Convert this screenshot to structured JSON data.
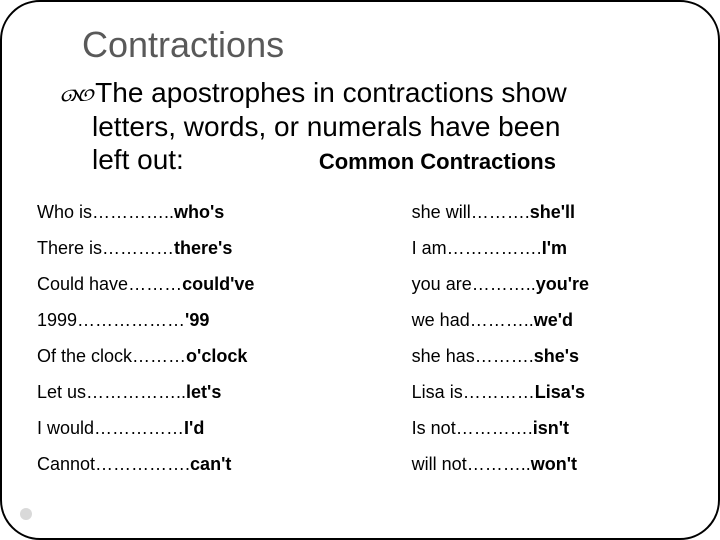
{
  "title": "Contractions",
  "body": {
    "line1": "The apostrophes in contractions show",
    "line2": "letters, words, or numerals have been",
    "leftout": "left out:",
    "subtitle": "Common Contractions"
  },
  "rows": [
    {
      "left_plain": "Who is…………..",
      "left_bold": "who's",
      "right_plain": "she will……….",
      "right_bold": "she'll"
    },
    {
      "left_plain": "There is…………",
      "left_bold": "there's",
      "right_plain": "I am…………….",
      "right_bold": "I'm"
    },
    {
      "left_plain": "Could have………",
      "left_bold": "could've",
      "right_plain": "you are………..",
      "right_bold": "you're"
    },
    {
      "left_plain": "1999………………",
      "left_bold": "'99",
      "right_plain": "we had………..",
      "right_bold": "we'd"
    },
    {
      "left_plain": "Of the clock………",
      "left_bold": "o'clock",
      "right_plain": "she has……….",
      "right_bold": "she's"
    },
    {
      "left_plain": "Let us……………..",
      "left_bold": "let's",
      "right_plain": "Lisa is…………",
      "right_bold": "Lisa's"
    },
    {
      "left_plain": "I would……………",
      "left_bold": "I'd",
      "right_plain": "Is not………….",
      "right_bold": "isn't"
    },
    {
      "left_plain": "Cannot…………….",
      "left_bold": "can't",
      "right_plain": "will not………..",
      "right_bold": "won't"
    }
  ],
  "styles": {
    "title_color": "#595959",
    "text_color": "#000000",
    "background": "#ffffff",
    "title_fontsize": 36,
    "body_fontsize": 28,
    "subtitle_fontsize": 22,
    "table_fontsize": 18
  }
}
